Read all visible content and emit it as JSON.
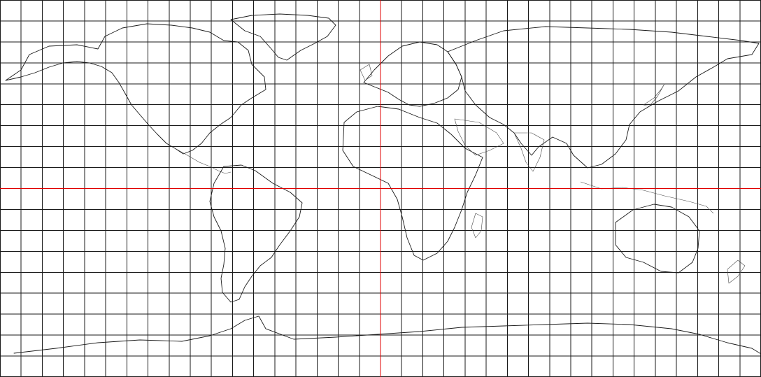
{
  "map": {
    "projection": "equirectangular",
    "longitude_range": [
      -180,
      180
    ],
    "latitude_range": [
      -90,
      90
    ],
    "graticule": {
      "meridian_count": 36,
      "parallel_count": 18,
      "color": "#1a1a1a"
    },
    "reference_lines": {
      "color": "#e00000",
      "equator_latitude": 0,
      "prime_meridian_longitude": 0
    },
    "coastline_color": "#1a1a1a",
    "background_color": "#ffffff"
  }
}
